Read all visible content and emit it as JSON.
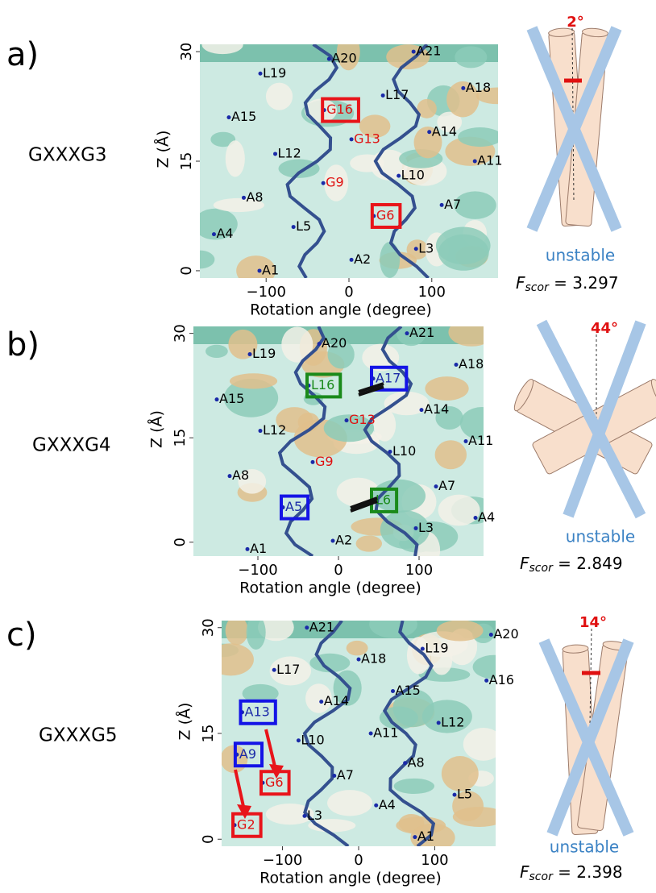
{
  "chart_data": [
    {
      "type": "scatter",
      "x_label": "Rotation angle (degree)",
      "y_label": "Z (Å)",
      "xlim": [
        -180,
        180
      ],
      "ylim": [
        -1,
        31
      ],
      "xticks": [
        {
          "value": -100,
          "label": "−100"
        },
        0,
        100
      ],
      "yticks": [
        0,
        15,
        30
      ],
      "point_color": "#1a2aa8",
      "point_labels": [
        "A20",
        "A21",
        "L19",
        "A18",
        "L17",
        "G16",
        "A15",
        "A14",
        "G13",
        "L12",
        "A11",
        "L10",
        "G9",
        "A8",
        "A7",
        "G6",
        "L5",
        "A4",
        "L3",
        "A2",
        "A1"
      ],
      "x": [
        -24,
        78,
        -107,
        138,
        41,
        -30,
        -145,
        97,
        3,
        -89,
        152,
        60,
        -31,
        -127,
        112,
        30,
        -67,
        -163,
        81,
        3,
        -108
      ],
      "values": [
        29,
        30,
        27,
        25,
        24,
        22,
        21,
        19,
        18,
        16,
        15,
        13,
        12,
        10,
        9,
        7.5,
        6,
        5,
        3,
        1.5,
        0
      ],
      "label_colors": [
        "#000",
        "#000",
        "#000",
        "#000",
        "#000",
        "#e01010",
        "#000",
        "#000",
        "#e01010",
        "#000",
        "#000",
        "#000",
        "#e01010",
        "#000",
        "#000",
        "#e01010",
        "#000",
        "#000",
        "#000",
        "#000",
        "#000"
      ],
      "box_colors": [
        null,
        null,
        null,
        null,
        null,
        "#e8141a",
        null,
        null,
        null,
        null,
        null,
        null,
        null,
        null,
        null,
        "#e8141a",
        null,
        null,
        null,
        null,
        null
      ]
    },
    {
      "type": "scatter",
      "x_label": "Rotation angle (degree)",
      "y_label": "Z (Å)",
      "xlim": [
        -180,
        180
      ],
      "ylim": [
        -2,
        31
      ],
      "xticks": [
        {
          "value": -100,
          "label": "−100"
        },
        0,
        100
      ],
      "yticks": [
        0,
        15,
        30
      ],
      "point_color": "#1a2aa8",
      "point_labels": [
        "A21",
        "A20",
        "L19",
        "A18",
        "A17",
        "L16",
        "A15",
        "A14",
        "G13",
        "L12",
        "A11",
        "L10",
        "G9",
        "A8",
        "A7",
        "L6",
        "A5",
        "A4",
        "L3",
        "A2",
        "A1"
      ],
      "x": [
        85,
        -24,
        -110,
        146,
        43,
        -37,
        -151,
        103,
        10,
        -97,
        158,
        64,
        -32,
        -135,
        121,
        43,
        -69,
        170,
        96,
        -7,
        -113
      ],
      "values": [
        30,
        28.5,
        27,
        25.5,
        23.5,
        22.5,
        20.5,
        19,
        17.5,
        16,
        14.5,
        13,
        11.5,
        9.5,
        8,
        6,
        5,
        3.5,
        2,
        0.2,
        -1
      ],
      "label_colors": [
        "#000",
        "#000",
        "#000",
        "#000",
        "#1a2aa8",
        "#1a8a1a",
        "#000",
        "#000",
        "#e01010",
        "#000",
        "#000",
        "#000",
        "#e01010",
        "#000",
        "#000",
        "#1a8a1a",
        "#1a2aa8",
        "#000",
        "#000",
        "#000",
        "#000"
      ],
      "box_colors": [
        null,
        null,
        null,
        null,
        "#1414e6",
        "#1a8a1a",
        null,
        null,
        null,
        null,
        null,
        null,
        null,
        null,
        null,
        "#1a8a1a",
        "#1414e6",
        null,
        null,
        null,
        null
      ]
    },
    {
      "type": "scatter",
      "x_label": "Rotation angle (degree)",
      "y_label": "Z (Å)",
      "xlim": [
        -180,
        180
      ],
      "ylim": [
        -1,
        31
      ],
      "xticks": [
        {
          "value": -100,
          "label": "−100"
        },
        0,
        100
      ],
      "yticks": [
        0,
        15,
        30
      ],
      "point_color": "#1a2aa8",
      "point_labels": [
        "A21",
        "A20",
        "L19",
        "A18",
        "L17",
        "A16",
        "A15",
        "A14",
        "A13",
        "L12",
        "A11",
        "L10",
        "A9",
        "A8",
        "A7",
        "G6",
        "L5",
        "A4",
        "L3",
        "G2",
        "A1"
      ],
      "x": [
        -68,
        174,
        84,
        0,
        -111,
        168,
        45,
        -49,
        -153,
        105,
        16,
        -79,
        -160,
        61,
        -32,
        -126,
        126,
        23,
        -71,
        -163,
        74
      ],
      "values": [
        30,
        29,
        27,
        25.5,
        24,
        22.5,
        21,
        19.5,
        18,
        16.5,
        15,
        14,
        12,
        10.8,
        9,
        8,
        6.3,
        4.8,
        3.3,
        2,
        0.3
      ],
      "label_colors": [
        "#000",
        "#000",
        "#000",
        "#000",
        "#000",
        "#000",
        "#000",
        "#000",
        "#1a2aa8",
        "#000",
        "#000",
        "#000",
        "#1a2aa8",
        "#000",
        "#000",
        "#e01010",
        "#000",
        "#000",
        "#000",
        "#e01010",
        "#000"
      ],
      "box_colors": [
        null,
        null,
        null,
        null,
        null,
        null,
        null,
        null,
        "#1414e6",
        null,
        null,
        null,
        "#1414e6",
        null,
        null,
        "#e8141a",
        null,
        null,
        null,
        "#e8141a",
        null
      ]
    }
  ],
  "panels": [
    {
      "label": "a)",
      "name": "GXXXG3",
      "tilt": "2°",
      "state": "unstable",
      "f_symbol": "F",
      "f_subscript": "scor",
      "f_value": " = 3.297"
    },
    {
      "label": "b)",
      "name": "GXXXG4",
      "tilt": "44°",
      "state": "unstable",
      "f_symbol": "F",
      "f_subscript": "scor",
      "f_value": " = 2.849"
    },
    {
      "label": "c)",
      "name": "GXXXG5",
      "tilt": "14°",
      "state": "unstable",
      "f_symbol": "F",
      "f_subscript": "scor",
      "f_value": " = 2.398"
    }
  ]
}
